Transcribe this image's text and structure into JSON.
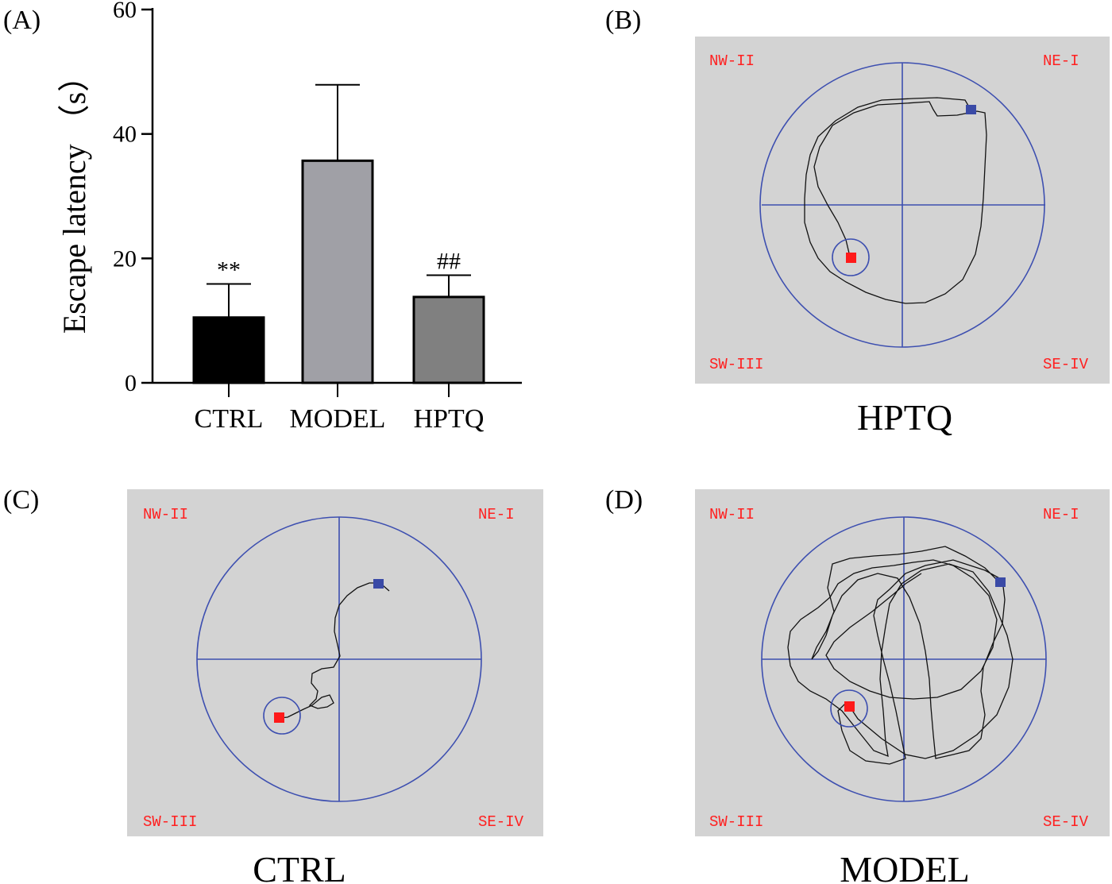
{
  "panels": {
    "a": {
      "letter": "(A)"
    },
    "b": {
      "letter": "(B)",
      "caption": "HPTQ"
    },
    "c": {
      "letter": "(C)",
      "caption": "CTRL"
    },
    "d": {
      "letter": "(D)",
      "caption": "MODEL"
    }
  },
  "quadrants": {
    "nw": "NW-II",
    "ne": "NE-I",
    "sw": "SW-III",
    "se": "SE-IV"
  },
  "colors": {
    "arena_bg": "#d3d3d3",
    "pool": "#3d4fb0",
    "path": "#111111",
    "start": "#3a4aa6",
    "platform": "#ff1a1a",
    "quad_text": "#ff2020"
  },
  "chart_data": {
    "type": "bar",
    "title": "",
    "xlabel": "",
    "ylabel": "Escape latency （s）",
    "ylim": [
      0,
      60
    ],
    "yticks": [
      "0",
      "20",
      "40",
      "60"
    ],
    "categories": [
      "CTRL",
      "MODEL",
      "HPTQ"
    ],
    "values": [
      10.5,
      35.7,
      13.8
    ],
    "errors": [
      5.4,
      12.2,
      3.5
    ],
    "bar_colors": [
      "#000000",
      "#a0a0a6",
      "#808080"
    ],
    "annotations": [
      "**",
      "",
      "##"
    ]
  }
}
